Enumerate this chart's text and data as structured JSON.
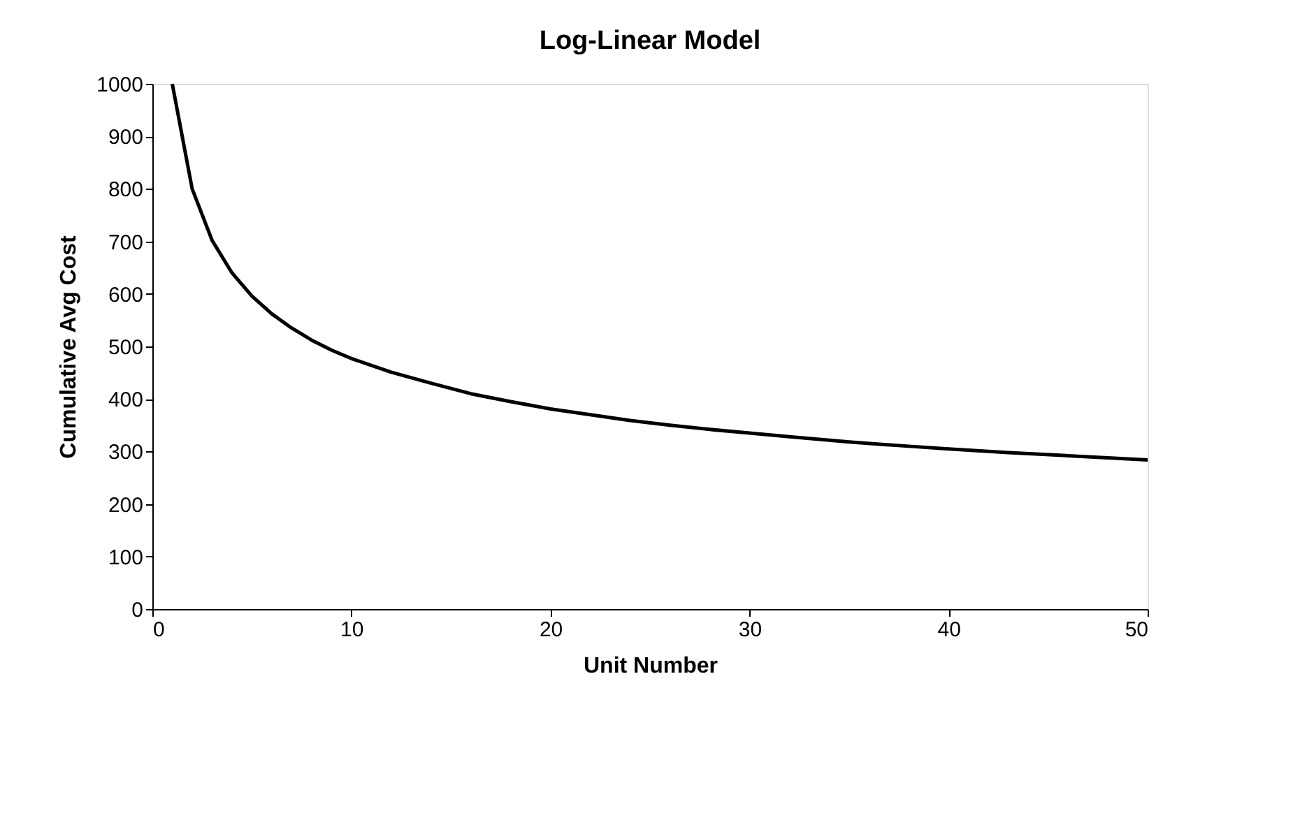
{
  "chart_data": {
    "type": "line",
    "title": "Log-Linear Model",
    "xlabel": "Unit Number",
    "ylabel": "Cumulative Avg Cost",
    "x": [
      1,
      2,
      3,
      4,
      5,
      6,
      7,
      8,
      9,
      10,
      12,
      14,
      16,
      18,
      20,
      22,
      24,
      26,
      28,
      30,
      32,
      35,
      38,
      40,
      43,
      46,
      50
    ],
    "series": [
      {
        "color": "#000000",
        "values": [
          1000,
          800,
          702,
          640,
          596,
          562,
          535,
          512,
          493,
          477,
          451,
          430,
          410,
          395,
          381,
          370,
          359,
          350,
          342,
          335,
          328,
          318,
          310,
          305,
          298,
          292,
          284
        ]
      }
    ],
    "xlim": [
      0,
      50
    ],
    "xticks": [
      0,
      10,
      20,
      30,
      40,
      50
    ],
    "ylim": [
      0,
      1000
    ],
    "yticks": [
      0,
      100,
      200,
      300,
      400,
      500,
      600,
      700,
      800,
      900,
      1000
    ],
    "grid": false,
    "legend": false,
    "marker": "none",
    "line_style": "solid"
  }
}
